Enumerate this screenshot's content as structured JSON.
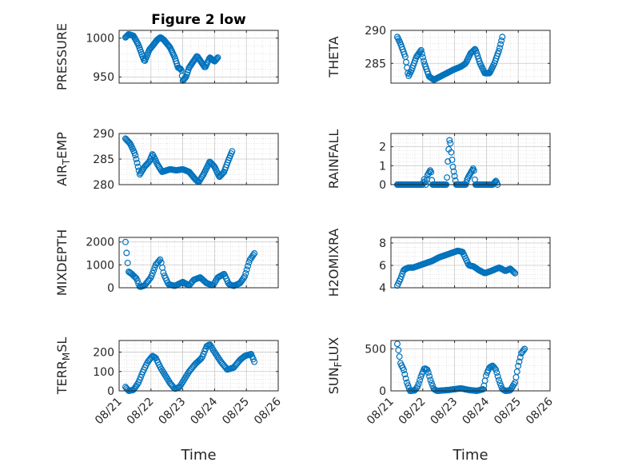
{
  "colors": {
    "marker": "#0072BD",
    "axis": "#262626",
    "grid": "#c8c8c8"
  },
  "x_tick_labels": [
    "08/21",
    "08/22",
    "08/23",
    "08/24",
    "08/25",
    "08/26"
  ],
  "chart_data": [
    {
      "type": "scatter",
      "title": "Figure 2 low",
      "xlabel": "",
      "ylabel": "PRESSURE",
      "xlim": [
        0,
        5
      ],
      "ylim": [
        942,
        1010
      ],
      "yticks": [
        950,
        1000
      ],
      "grid": true,
      "x_start": 0.2,
      "x_end": 4.55,
      "knots": [
        [
          0.2,
          1001
        ],
        [
          0.3,
          1005
        ],
        [
          0.45,
          1003
        ],
        [
          0.6,
          992
        ],
        [
          0.75,
          975
        ],
        [
          0.8,
          970
        ],
        [
          0.95,
          985
        ],
        [
          1.05,
          990
        ],
        [
          1.2,
          998
        ],
        [
          1.3,
          1001
        ],
        [
          1.4,
          998
        ],
        [
          1.5,
          993
        ],
        [
          1.6,
          988
        ],
        [
          1.75,
          975
        ],
        [
          1.85,
          962
        ],
        [
          1.95,
          960
        ],
        [
          2.0,
          945
        ],
        [
          2.1,
          950
        ],
        [
          2.2,
          962
        ],
        [
          2.3,
          968
        ],
        [
          2.45,
          977
        ],
        [
          2.6,
          968
        ],
        [
          2.7,
          962
        ],
        [
          2.85,
          975
        ],
        [
          3.0,
          970
        ],
        [
          3.1,
          975
        ]
      ]
    },
    {
      "type": "scatter",
      "title": "",
      "xlabel": "",
      "ylabel": "THETA",
      "xlim": [
        0,
        5
      ],
      "ylim": [
        282,
        290
      ],
      "yticks": [
        285,
        290
      ],
      "grid": true,
      "x_start": 0.2,
      "x_end": 4.55,
      "knots": [
        [
          0.2,
          289
        ],
        [
          0.3,
          288
        ],
        [
          0.45,
          286
        ],
        [
          0.55,
          283
        ],
        [
          0.65,
          284
        ],
        [
          0.8,
          286
        ],
        [
          0.95,
          287
        ],
        [
          1.05,
          285
        ],
        [
          1.2,
          283
        ],
        [
          1.35,
          282.5
        ],
        [
          1.55,
          283
        ],
        [
          1.75,
          283.5
        ],
        [
          1.95,
          284
        ],
        [
          2.2,
          284.5
        ],
        [
          2.35,
          285
        ],
        [
          2.5,
          286.5
        ],
        [
          2.65,
          287.2
        ],
        [
          2.8,
          285
        ],
        [
          2.95,
          283.5
        ],
        [
          3.1,
          283.5
        ],
        [
          3.25,
          285
        ],
        [
          3.4,
          287
        ],
        [
          3.5,
          289
        ]
      ]
    },
    {
      "type": "scatter",
      "title": "",
      "xlabel": "",
      "ylabel": "AIR_TEMP",
      "xlim": [
        0,
        5
      ],
      "ylim": [
        280,
        290
      ],
      "yticks": [
        280,
        285,
        290
      ],
      "grid": true,
      "x_start": 0.2,
      "x_end": 4.55,
      "knots": [
        [
          0.2,
          289
        ],
        [
          0.35,
          288
        ],
        [
          0.5,
          286
        ],
        [
          0.65,
          282
        ],
        [
          0.8,
          283.5
        ],
        [
          0.95,
          284.5
        ],
        [
          1.05,
          286
        ],
        [
          1.2,
          284
        ],
        [
          1.35,
          282.5
        ],
        [
          1.6,
          283
        ],
        [
          1.8,
          282.8
        ],
        [
          2.0,
          283
        ],
        [
          2.2,
          282.5
        ],
        [
          2.4,
          281
        ],
        [
          2.5,
          280.5
        ],
        [
          2.65,
          282
        ],
        [
          2.85,
          284.5
        ],
        [
          3.0,
          283.5
        ],
        [
          3.15,
          281.5
        ],
        [
          3.3,
          282.5
        ],
        [
          3.45,
          285
        ],
        [
          3.55,
          286.5
        ]
      ]
    },
    {
      "type": "scatter",
      "title": "",
      "xlabel": "",
      "ylabel": "RAINFALL",
      "xlim": [
        0,
        5
      ],
      "ylim": [
        0,
        2.7
      ],
      "yticks": [
        0,
        1,
        2
      ],
      "grid": true,
      "x_start": 0.2,
      "x_end": 4.55,
      "knots": [
        [
          0.2,
          0
        ],
        [
          1.0,
          0
        ],
        [
          1.05,
          0.3
        ],
        [
          1.1,
          0
        ],
        [
          1.15,
          0.5
        ],
        [
          1.25,
          0.8
        ],
        [
          1.3,
          0
        ],
        [
          1.75,
          0
        ],
        [
          1.8,
          1.6
        ],
        [
          1.85,
          2.5
        ],
        [
          1.9,
          1.6
        ],
        [
          1.95,
          0.9
        ],
        [
          2.05,
          0
        ],
        [
          2.35,
          0
        ],
        [
          2.4,
          0.3
        ],
        [
          2.5,
          0.6
        ],
        [
          2.6,
          0.9
        ],
        [
          2.65,
          0
        ],
        [
          3.2,
          0
        ],
        [
          3.3,
          0.2
        ],
        [
          3.35,
          0
        ]
      ]
    },
    {
      "type": "scatter",
      "title": "",
      "xlabel": "",
      "ylabel": "MIXDEPTH",
      "xlim": [
        0,
        5
      ],
      "ylim": [
        0,
        2200
      ],
      "yticks": [
        0,
        1000,
        2000
      ],
      "grid": true,
      "x_start": 0.2,
      "x_end": 4.55,
      "knots": [
        [
          0.2,
          2000
        ],
        [
          0.25,
          1300
        ],
        [
          0.3,
          700
        ],
        [
          0.4,
          600
        ],
        [
          0.55,
          400
        ],
        [
          0.65,
          30
        ],
        [
          0.8,
          100
        ],
        [
          1.0,
          450
        ],
        [
          1.15,
          1000
        ],
        [
          1.3,
          1250
        ],
        [
          1.4,
          600
        ],
        [
          1.55,
          150
        ],
        [
          1.75,
          80
        ],
        [
          2.0,
          250
        ],
        [
          2.2,
          100
        ],
        [
          2.35,
          350
        ],
        [
          2.55,
          450
        ],
        [
          2.75,
          200
        ],
        [
          2.95,
          100
        ],
        [
          3.1,
          450
        ],
        [
          3.3,
          600
        ],
        [
          3.45,
          150
        ],
        [
          3.6,
          80
        ],
        [
          3.8,
          200
        ],
        [
          3.95,
          500
        ],
        [
          4.1,
          1200
        ],
        [
          4.25,
          1500
        ]
      ]
    },
    {
      "type": "scatter",
      "title": "",
      "xlabel": "",
      "ylabel": "H2OMIXRA",
      "xlim": [
        0,
        5
      ],
      "ylim": [
        4,
        8.5
      ],
      "yticks": [
        4,
        6,
        8
      ],
      "grid": true,
      "x_start": 0.2,
      "x_end": 4.55,
      "knots": [
        [
          0.2,
          4.2
        ],
        [
          0.3,
          4.8
        ],
        [
          0.4,
          5.6
        ],
        [
          0.55,
          5.8
        ],
        [
          0.7,
          5.8
        ],
        [
          0.9,
          6.0
        ],
        [
          1.1,
          6.2
        ],
        [
          1.3,
          6.4
        ],
        [
          1.5,
          6.7
        ],
        [
          1.7,
          6.9
        ],
        [
          1.9,
          7.1
        ],
        [
          2.1,
          7.3
        ],
        [
          2.25,
          7.2
        ],
        [
          2.35,
          6.6
        ],
        [
          2.45,
          6.0
        ],
        [
          2.6,
          5.9
        ],
        [
          2.75,
          5.6
        ],
        [
          2.95,
          5.3
        ],
        [
          3.15,
          5.5
        ],
        [
          3.4,
          5.8
        ],
        [
          3.6,
          5.5
        ],
        [
          3.75,
          5.7
        ],
        [
          3.9,
          5.3
        ]
      ]
    },
    {
      "type": "scatter",
      "title": "",
      "xlabel": "Time",
      "ylabel": "TERR_MSL",
      "xlim": [
        0,
        5
      ],
      "ylim": [
        0,
        260
      ],
      "yticks": [
        0,
        100,
        200
      ],
      "grid": true,
      "x_start": 0.2,
      "x_end": 4.55,
      "knots": [
        [
          0.2,
          20
        ],
        [
          0.3,
          0
        ],
        [
          0.45,
          5
        ],
        [
          0.6,
          40
        ],
        [
          0.75,
          100
        ],
        [
          0.9,
          150
        ],
        [
          1.05,
          180
        ],
        [
          1.15,
          170
        ],
        [
          1.3,
          120
        ],
        [
          1.45,
          80
        ],
        [
          1.6,
          40
        ],
        [
          1.75,
          10
        ],
        [
          1.9,
          20
        ],
        [
          2.05,
          60
        ],
        [
          2.2,
          100
        ],
        [
          2.4,
          140
        ],
        [
          2.6,
          170
        ],
        [
          2.75,
          230
        ],
        [
          2.85,
          240
        ],
        [
          3.0,
          200
        ],
        [
          3.2,
          150
        ],
        [
          3.4,
          110
        ],
        [
          3.6,
          120
        ],
        [
          3.8,
          160
        ],
        [
          3.95,
          180
        ],
        [
          4.15,
          190
        ],
        [
          4.25,
          150
        ]
      ]
    },
    {
      "type": "scatter",
      "title": "",
      "xlabel": "Time",
      "ylabel": "SUN_FLUX",
      "xlim": [
        0,
        5
      ],
      "ylim": [
        0,
        600
      ],
      "yticks": [
        0,
        500
      ],
      "grid": true,
      "x_start": 0.2,
      "x_end": 4.55,
      "knots": [
        [
          0.2,
          560
        ],
        [
          0.25,
          450
        ],
        [
          0.3,
          330
        ],
        [
          0.4,
          250
        ],
        [
          0.5,
          100
        ],
        [
          0.6,
          0
        ],
        [
          0.75,
          5
        ],
        [
          0.85,
          60
        ],
        [
          0.95,
          180
        ],
        [
          1.05,
          270
        ],
        [
          1.15,
          250
        ],
        [
          1.25,
          120
        ],
        [
          1.35,
          20
        ],
        [
          1.45,
          0
        ],
        [
          1.8,
          10
        ],
        [
          2.2,
          30
        ],
        [
          2.45,
          10
        ],
        [
          2.7,
          0
        ],
        [
          2.9,
          20
        ],
        [
          3.0,
          200
        ],
        [
          3.1,
          280
        ],
        [
          3.2,
          300
        ],
        [
          3.3,
          250
        ],
        [
          3.4,
          120
        ],
        [
          3.5,
          20
        ],
        [
          3.6,
          0
        ],
        [
          3.75,
          5
        ],
        [
          3.9,
          100
        ],
        [
          4.0,
          300
        ],
        [
          4.1,
          450
        ],
        [
          4.2,
          500
        ]
      ]
    }
  ]
}
